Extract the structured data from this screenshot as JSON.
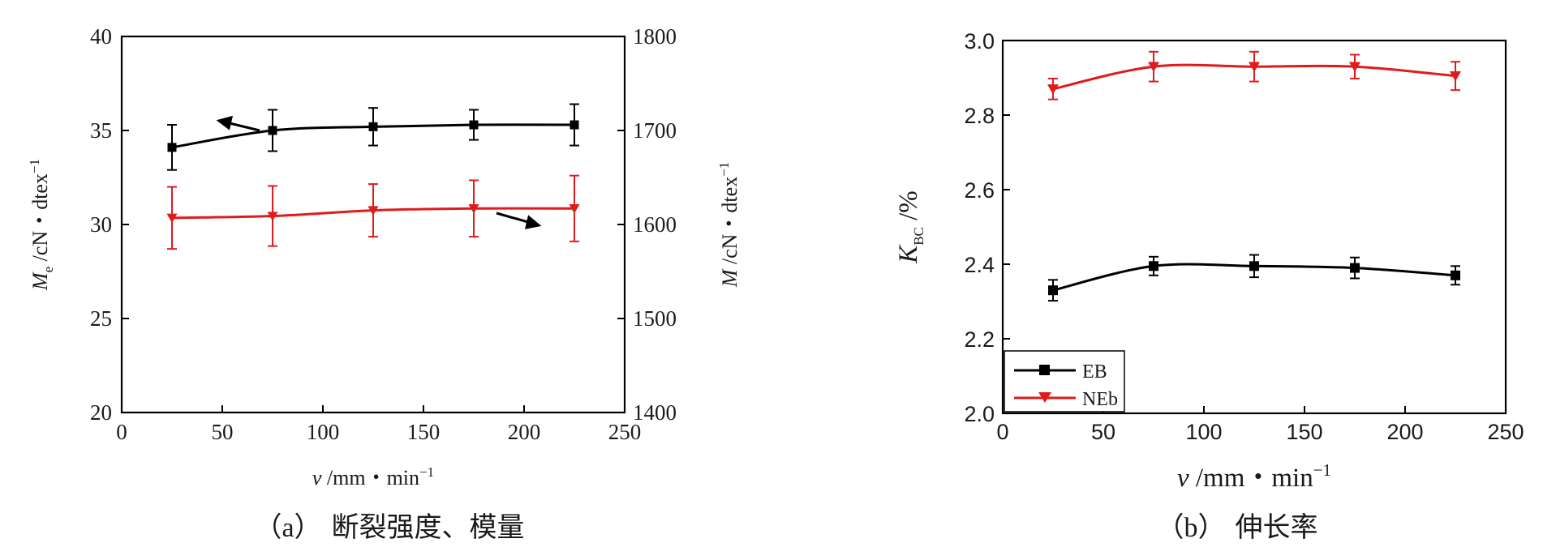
{
  "chart_data": [
    {
      "type": "line",
      "caption": {
        "tag": "（a）",
        "text": "断裂强度、模量"
      },
      "xlabel": {
        "var": "v",
        "unit": " /mm・min",
        "sup": "−1"
      },
      "ylabel_left": {
        "var": "M",
        "sub": "e",
        "unit": " /cN・dtex",
        "sup": "−1"
      },
      "ylabel_right": {
        "var": "M",
        "unit": " /cN・dtex",
        "sup": "−1"
      },
      "xlim": [
        0,
        250
      ],
      "ylim_left": [
        20,
        40
      ],
      "ylim_right": [
        1400,
        1800
      ],
      "xticks": [
        0,
        50,
        100,
        150,
        200,
        250
      ],
      "yticks_left": [
        20,
        25,
        30,
        35,
        40
      ],
      "yticks_right": [
        1400,
        1500,
        1600,
        1700,
        1800
      ],
      "series": [
        {
          "axis": "left",
          "color": "#000000",
          "marker": "square",
          "x": [
            25,
            75,
            125,
            175,
            225
          ],
          "y": [
            34.1,
            35.0,
            35.2,
            35.3,
            35.3
          ],
          "err": [
            1.2,
            1.1,
            1.0,
            0.8,
            1.1
          ]
        },
        {
          "axis": "right",
          "color": "#e01b1b",
          "marker": "triangle-down",
          "x": [
            25,
            75,
            125,
            175,
            225
          ],
          "y": [
            1607,
            1609,
            1615,
            1617,
            1617
          ],
          "err": [
            33,
            32,
            28,
            30,
            35
          ]
        }
      ]
    },
    {
      "type": "line",
      "caption": {
        "tag": "（b）",
        "text": "伸长率"
      },
      "xlabel": {
        "var": "v",
        "unit": " /mm・min",
        "sup": "−1"
      },
      "ylabel": {
        "var": "K",
        "sub": "BC",
        "unit": " /%"
      },
      "xlim": [
        0,
        250
      ],
      "ylim": [
        2.0,
        3.0
      ],
      "xticks": [
        0,
        50,
        100,
        150,
        200,
        250
      ],
      "yticks": [
        "2.0",
        "2.2",
        "2.4",
        "2.6",
        "2.8",
        "3.0"
      ],
      "legend": {
        "position": "bottom-left",
        "entries": [
          "EB",
          "NEb"
        ]
      },
      "series": [
        {
          "name": "EB",
          "color": "#000000",
          "marker": "square",
          "x": [
            25,
            75,
            125,
            175,
            225
          ],
          "y": [
            2.33,
            2.395,
            2.395,
            2.39,
            2.37
          ],
          "err": [
            0.028,
            0.025,
            0.03,
            0.028,
            0.025
          ]
        },
        {
          "name": "NEb",
          "color": "#e01b1b",
          "marker": "triangle-down",
          "x": [
            25,
            75,
            125,
            175,
            225
          ],
          "y": [
            2.87,
            2.93,
            2.93,
            2.93,
            2.905
          ],
          "err": [
            0.028,
            0.04,
            0.04,
            0.032,
            0.038
          ]
        }
      ]
    }
  ]
}
